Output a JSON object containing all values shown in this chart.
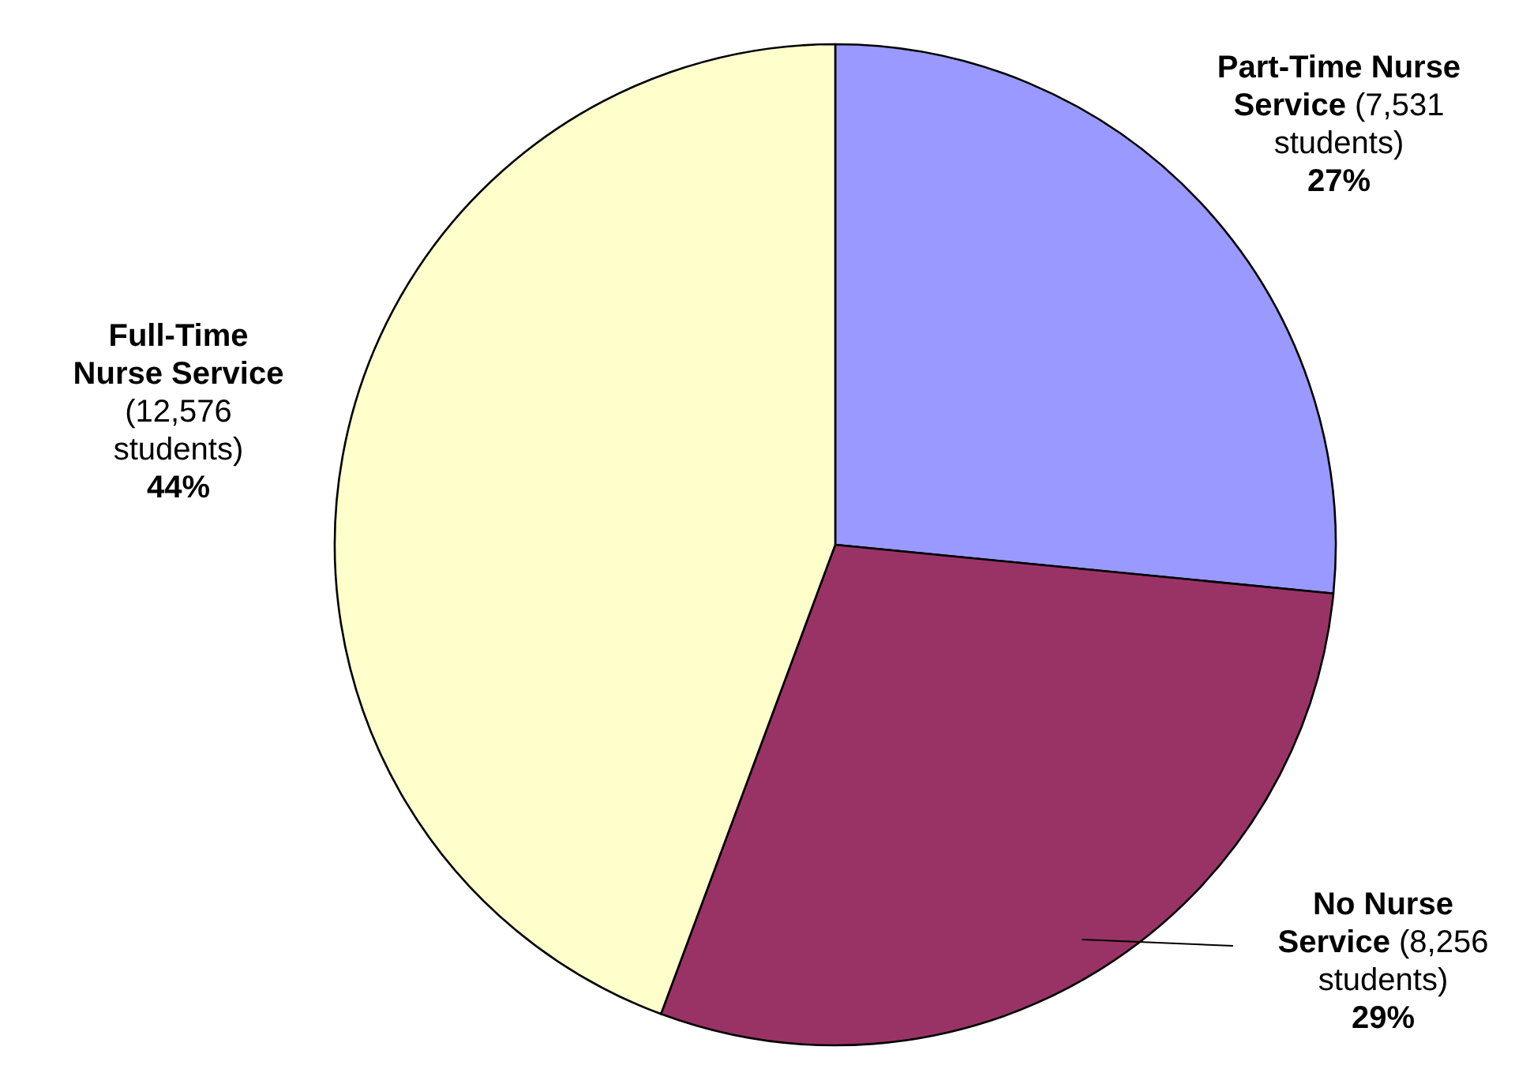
{
  "chart_data": {
    "type": "pie",
    "categories": [
      "Part-Time Nurse Service",
      "No Nurse Service",
      "Full-Time Nurse Service"
    ],
    "values": [
      7531,
      8256,
      12576
    ],
    "colors": [
      "#9999ff",
      "#993366",
      "#ffffcc"
    ],
    "value_labels": [
      "(7,531 students) 27%",
      "(8,256 students) 29%",
      "(12,576 students) 44%"
    ]
  }
}
